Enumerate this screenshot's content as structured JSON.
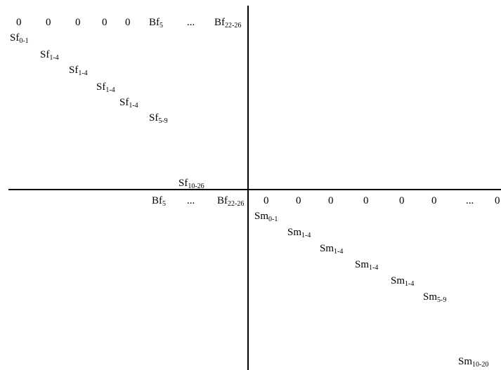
{
  "colors": {
    "background": "#ffffff",
    "ink": "#000000"
  },
  "female_block": {
    "top_row": [
      "0",
      "0",
      "0",
      "0",
      "0"
    ],
    "bf5": {
      "base": "Bf",
      "sub": "5"
    },
    "ellipsis": "...",
    "bf_last": {
      "base": "Bf",
      "sub": "22-26"
    },
    "diagonal": [
      {
        "base": "Sf",
        "sub": "0-1"
      },
      {
        "base": "Sf",
        "sub": "1-4"
      },
      {
        "base": "Sf",
        "sub": "1-4"
      },
      {
        "base": "Sf",
        "sub": "1-4"
      },
      {
        "base": "Sf",
        "sub": "1-4"
      },
      {
        "base": "Sf",
        "sub": "5-9"
      },
      {
        "base": "Sf",
        "sub": "10-26"
      }
    ]
  },
  "male_block": {
    "bf5": {
      "base": "Bf",
      "sub": "5"
    },
    "ellipsis_left": "...",
    "bf_last": {
      "base": "Bf",
      "sub": "22-26"
    },
    "top_row": [
      "0",
      "0",
      "0",
      "0",
      "0",
      "0"
    ],
    "ellipsis_right": "...",
    "last_zero": "0",
    "diagonal": [
      {
        "base": "Sm",
        "sub": "0-1"
      },
      {
        "base": "Sm",
        "sub": "1-4"
      },
      {
        "base": "Sm",
        "sub": "1-4"
      },
      {
        "base": "Sm",
        "sub": "1-4"
      },
      {
        "base": "Sm",
        "sub": "1-4"
      },
      {
        "base": "Sm",
        "sub": "5-9"
      },
      {
        "base": "Sm",
        "sub": "10-20"
      }
    ]
  }
}
